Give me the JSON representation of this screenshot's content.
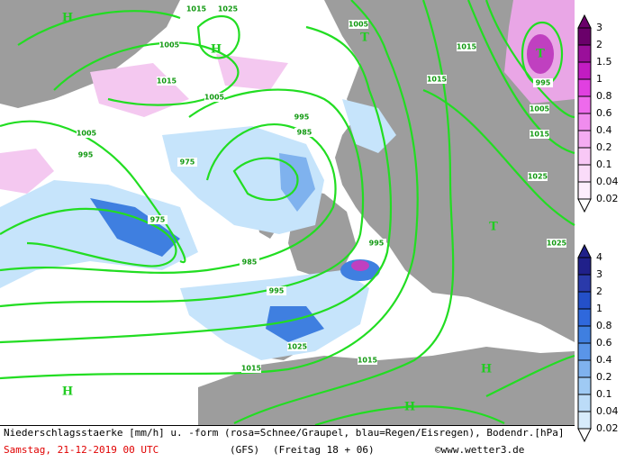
{
  "map_labels": {
    "pressure": [
      "1015",
      "1025",
      "1005",
      "1015",
      "1005",
      "995",
      "985",
      "995",
      "1005",
      "975",
      "975",
      "985",
      "995",
      "1005",
      "1015",
      "1015",
      "995",
      "1005",
      "1015",
      "1025",
      "1025",
      "995",
      "1015",
      "1015",
      "1025"
    ],
    "centers": [
      "H",
      "H",
      "H",
      "H",
      "H",
      "T",
      "T",
      "T"
    ]
  },
  "legend_snow": {
    "labels": [
      "3",
      "2",
      "1.5",
      "1",
      "0.8",
      "0.6",
      "0.4",
      "0.2",
      "0.1",
      "0.04",
      "0.02"
    ]
  },
  "legend_rain": {
    "labels": [
      "4",
      "3",
      "2",
      "1",
      "0.8",
      "0.6",
      "0.4",
      "0.2",
      "0.1",
      "0.04",
      "0.02"
    ]
  },
  "footer": {
    "description": "Niederschlagsstaerke [mm/h] u. -form (rosa=Schnee/Graupel, blau=Regen/Eisregen), Bodendr.[hPa]",
    "date": "Samstag, 21-12-2019  00 UTC",
    "model": "(GFS)",
    "run": "(Freitag 18 + 06)",
    "copyright": "©www.wetter3.de"
  }
}
